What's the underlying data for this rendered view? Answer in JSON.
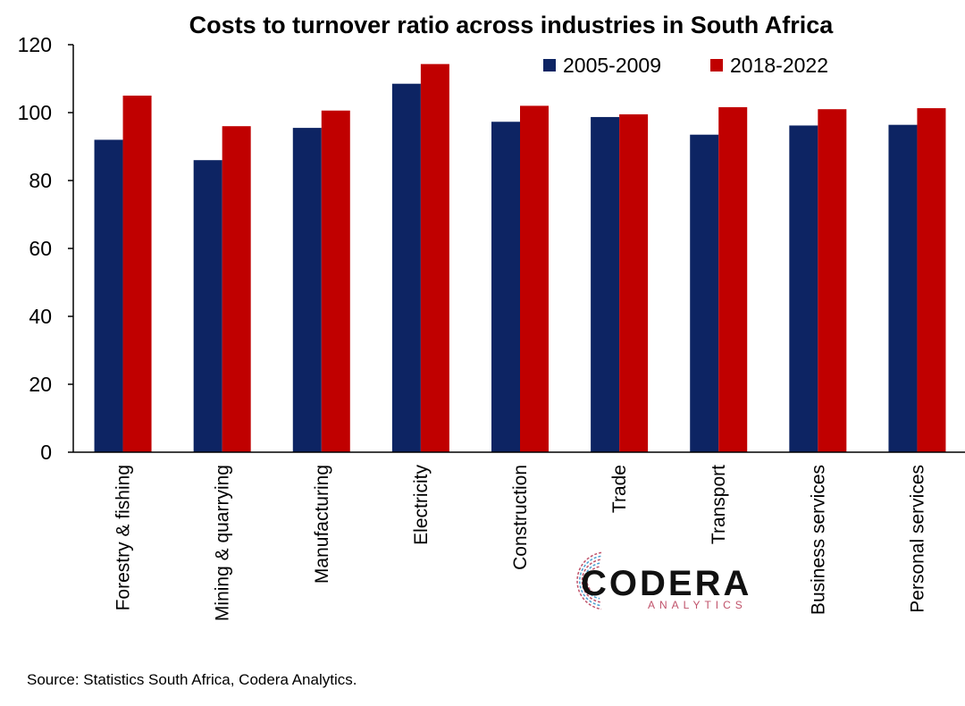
{
  "chart_data": {
    "type": "bar",
    "title": "Costs to turnover ratio across industries in South Africa",
    "categories": [
      "Forestry & fishing",
      "Mining & quarrying",
      "Manufacturing",
      "Electricity",
      "Construction",
      "Trade",
      "Transport",
      "Business services",
      "Personal services"
    ],
    "series": [
      {
        "name": "2005-2009",
        "color": "#0d2463",
        "values": [
          92,
          86,
          95.5,
          108.5,
          97.3,
          98.7,
          93.5,
          96.2,
          96.4
        ]
      },
      {
        "name": "2018-2022",
        "color": "#c00000",
        "values": [
          105,
          96,
          100.6,
          114.3,
          102,
          99.5,
          101.6,
          101,
          101.3
        ]
      }
    ],
    "yticks": [
      "0",
      "20",
      "40",
      "60",
      "80",
      "100",
      "120"
    ],
    "ylim": [
      0,
      120
    ],
    "xlabel": "",
    "ylabel": "",
    "legend_position": "top-right",
    "grid": false
  },
  "logo": {
    "name": "CODERA",
    "sub": "ANALYTICS",
    "colors": {
      "text": "#111111",
      "sub": "#c0526a",
      "accent": "#4a9fd0"
    }
  },
  "source": "Source: Statistics South Africa, Codera Analytics."
}
